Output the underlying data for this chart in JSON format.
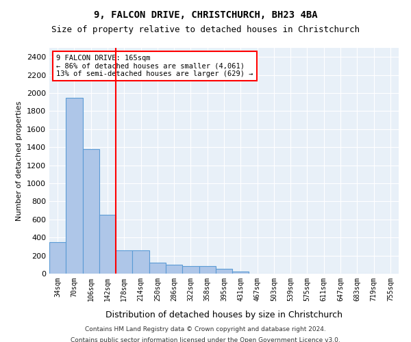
{
  "title": "9, FALCON DRIVE, CHRISTCHURCH, BH23 4BA",
  "subtitle": "Size of property relative to detached houses in Christchurch",
  "xlabel": "Distribution of detached houses by size in Christchurch",
  "ylabel": "Number of detached properties",
  "footer_line1": "Contains HM Land Registry data © Crown copyright and database right 2024.",
  "footer_line2": "Contains public sector information licensed under the Open Government Licence v3.0.",
  "bin_labels": [
    "34sqm",
    "70sqm",
    "106sqm",
    "142sqm",
    "178sqm",
    "214sqm",
    "250sqm",
    "286sqm",
    "322sqm",
    "358sqm",
    "395sqm",
    "431sqm",
    "467sqm",
    "503sqm",
    "539sqm",
    "575sqm",
    "611sqm",
    "647sqm",
    "683sqm",
    "719sqm",
    "755sqm"
  ],
  "bar_values": [
    350,
    1950,
    1380,
    650,
    255,
    255,
    120,
    100,
    80,
    80,
    50,
    20,
    0,
    0,
    0,
    0,
    0,
    0,
    0,
    0,
    0
  ],
  "bar_color": "#aec6e8",
  "bar_edge_color": "#5b9bd5",
  "red_line_x": 3.5,
  "annotation_text_line1": "9 FALCON DRIVE: 165sqm",
  "annotation_text_line2": "← 86% of detached houses are smaller (4,061)",
  "annotation_text_line3": "13% of semi-detached houses are larger (629) →",
  "ylim": [
    0,
    2500
  ],
  "yticks": [
    0,
    200,
    400,
    600,
    800,
    1000,
    1200,
    1400,
    1600,
    1800,
    2000,
    2200,
    2400
  ],
  "plot_bg_color": "#e8f0f8"
}
